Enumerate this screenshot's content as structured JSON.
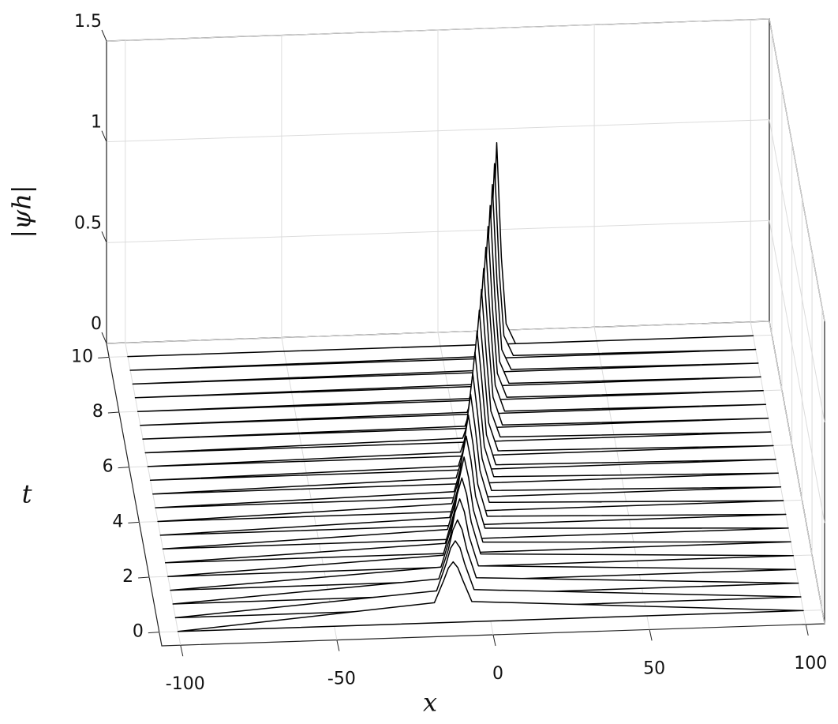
{
  "chart_data": {
    "type": "waterfall3d",
    "xlabel": "x",
    "ylabel": "t",
    "zlabel": "|ψh|",
    "xlim": [
      -106,
      106
    ],
    "ylim": [
      -0.5,
      10.5
    ],
    "zlim": [
      0,
      1.5
    ],
    "xticks": [
      -100,
      -50,
      0,
      50,
      100
    ],
    "yticks": [
      0,
      2,
      4,
      6,
      8,
      10
    ],
    "zticks": [
      0,
      0.5,
      1,
      1.5
    ],
    "grid": true,
    "color": "#000000",
    "series": [
      {
        "t": 0,
        "x": [
          -100,
          -18,
          -15,
          -13.5,
          -12,
          -10.5,
          -9,
          -6,
          100
        ],
        "values": [
          0,
          0.1,
          0.21,
          0.27,
          0.3,
          0.27,
          0.21,
          0.1,
          0
        ]
      },
      {
        "t": 0.5,
        "x": [
          -100,
          -16.5,
          -13.5,
          -12,
          -10.5,
          -9,
          -7.5,
          -4.5,
          100
        ],
        "values": [
          0,
          0.09,
          0.22,
          0.3,
          0.335,
          0.3,
          0.22,
          0.09,
          0
        ]
      },
      {
        "t": 1,
        "x": [
          -100,
          -15,
          -12,
          -10.5,
          -9,
          -7.5,
          -6,
          -3,
          100
        ],
        "values": [
          0,
          0.08,
          0.22,
          0.32,
          0.37,
          0.32,
          0.22,
          0.08,
          0
        ]
      },
      {
        "t": 1.5,
        "x": [
          -100,
          -13.5,
          -10.5,
          -9,
          -7.5,
          -6,
          -4.5,
          -1.5,
          100
        ],
        "values": [
          0,
          0.07,
          0.22,
          0.34,
          0.405,
          0.34,
          0.22,
          0.07,
          0
        ]
      },
      {
        "t": 2,
        "x": [
          -100,
          -12,
          -9,
          -7.5,
          -6,
          -4.5,
          -3,
          0,
          100
        ],
        "values": [
          0,
          0.06,
          0.22,
          0.36,
          0.44,
          0.36,
          0.22,
          0.06,
          0
        ]
      },
      {
        "t": 2.5,
        "x": [
          -100,
          -10.5,
          -7.5,
          -6,
          -4.5,
          -3,
          -1.5,
          1.5,
          100
        ],
        "values": [
          0,
          0.05,
          0.21,
          0.37,
          0.475,
          0.37,
          0.21,
          0.05,
          0
        ]
      },
      {
        "t": 3,
        "x": [
          -100,
          -9,
          -6,
          -4.5,
          -3,
          -1.5,
          0,
          3,
          100
        ],
        "values": [
          0,
          0.05,
          0.21,
          0.39,
          0.51,
          0.39,
          0.21,
          0.05,
          0
        ]
      },
      {
        "t": 3.5,
        "x": [
          -100,
          -7.5,
          -4.5,
          -3,
          -1.5,
          0,
          1.5,
          4.5,
          100
        ],
        "values": [
          0,
          0.04,
          0.2,
          0.4,
          0.545,
          0.4,
          0.2,
          0.04,
          0
        ]
      },
      {
        "t": 4,
        "x": [
          -100,
          -6,
          -3,
          -1.5,
          0,
          1.5,
          3,
          6,
          100
        ],
        "values": [
          0,
          0.04,
          0.2,
          0.41,
          0.58,
          0.41,
          0.2,
          0.04,
          0
        ]
      },
      {
        "t": 4.5,
        "x": [
          -100,
          -4.5,
          -1.5,
          0,
          1.5,
          3,
          4.5,
          7.5,
          100
        ],
        "values": [
          0,
          0.03,
          0.19,
          0.42,
          0.615,
          0.42,
          0.19,
          0.03,
          0
        ]
      },
      {
        "t": 5,
        "x": [
          -100,
          -3,
          0,
          1.5,
          3,
          4.5,
          6,
          9,
          100
        ],
        "values": [
          0,
          0.03,
          0.18,
          0.43,
          0.65,
          0.43,
          0.18,
          0.03,
          0
        ]
      },
      {
        "t": 5.5,
        "x": [
          -100,
          -1.5,
          1.5,
          3,
          4.5,
          6,
          7.5,
          10.5,
          100
        ],
        "values": [
          0,
          0.02,
          0.17,
          0.44,
          0.685,
          0.44,
          0.17,
          0.02,
          0
        ]
      },
      {
        "t": 6,
        "x": [
          -100,
          0,
          3,
          4.5,
          6,
          7.5,
          9,
          12,
          100
        ],
        "values": [
          0,
          0.02,
          0.16,
          0.44,
          0.72,
          0.44,
          0.16,
          0.02,
          0
        ]
      },
      {
        "t": 6.5,
        "x": [
          -100,
          1.5,
          4.5,
          6,
          7.5,
          9,
          10.5,
          13.5,
          100
        ],
        "values": [
          0,
          0.02,
          0.15,
          0.44,
          0.755,
          0.44,
          0.15,
          0.02,
          0
        ]
      },
      {
        "t": 7,
        "x": [
          -100,
          3,
          6,
          7.5,
          9,
          10.5,
          12,
          15,
          100
        ],
        "values": [
          0,
          0.01,
          0.15,
          0.45,
          0.79,
          0.45,
          0.15,
          0.01,
          0
        ]
      },
      {
        "t": 7.5,
        "x": [
          -100,
          4.5,
          7.5,
          9,
          10.5,
          12,
          13.5,
          16.5,
          100
        ],
        "values": [
          0,
          0.01,
          0.14,
          0.45,
          0.825,
          0.45,
          0.14,
          0.01,
          0
        ]
      },
      {
        "t": 8,
        "x": [
          -100,
          6,
          9,
          10.5,
          12,
          13.5,
          15,
          18,
          100
        ],
        "values": [
          0,
          0.01,
          0.13,
          0.44,
          0.86,
          0.44,
          0.13,
          0.01,
          0
        ]
      },
      {
        "t": 8.5,
        "x": [
          -100,
          7.5,
          10.5,
          12,
          13.5,
          15,
          16.5,
          19.5,
          100
        ],
        "values": [
          0,
          0.01,
          0.12,
          0.44,
          0.895,
          0.44,
          0.12,
          0.01,
          0
        ]
      },
      {
        "t": 9,
        "x": [
          -100,
          9,
          12,
          13.5,
          15,
          16.5,
          18,
          21,
          100
        ],
        "values": [
          0,
          0.01,
          0.11,
          0.44,
          0.93,
          0.44,
          0.11,
          0.01,
          0
        ]
      },
      {
        "t": 9.5,
        "x": [
          -100,
          10.5,
          13.5,
          15,
          16.5,
          18,
          19.5,
          22.5,
          100
        ],
        "values": [
          0,
          0.01,
          0.11,
          0.43,
          0.965,
          0.43,
          0.11,
          0.01,
          0
        ]
      },
      {
        "t": 10,
        "x": [
          -100,
          12,
          15,
          16.5,
          18,
          19.5,
          21,
          24,
          100
        ],
        "values": [
          0,
          0.0,
          0.1,
          0.43,
          1.0,
          0.43,
          0.1,
          0.0,
          0
        ]
      }
    ]
  }
}
